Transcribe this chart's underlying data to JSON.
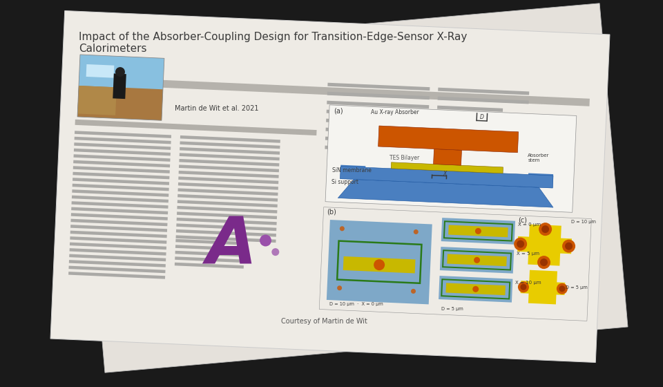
{
  "bg_color": "#1a1a1a",
  "paper_back_color": "#e5e1db",
  "paper_front_color": "#eeebe5",
  "title": "Impact of the Absorber-Coupling Design for Transition-Edge-Sensor X-Ray\nCalorimeters",
  "author_text": "Martin de Wit et al. 2021",
  "courtesy_text": "Courtesy of Martin de Wit",
  "dark_text": "#3a3a3a",
  "mid_text": "#555555",
  "line_gray": "#aaa9a6",
  "absorber_orange": "#cc5500",
  "tes_yellow": "#c8b800",
  "membrane_blue": "#4a7fc0",
  "panel_b_bg": "#7ea8c8",
  "panel_c_yellow": "#e8cc00",
  "panel_c_orange": "#cc5500",
  "green_outline": "#2a7a18",
  "purple_A": "#7a2a8a",
  "purple_dot": "#9a50aa"
}
